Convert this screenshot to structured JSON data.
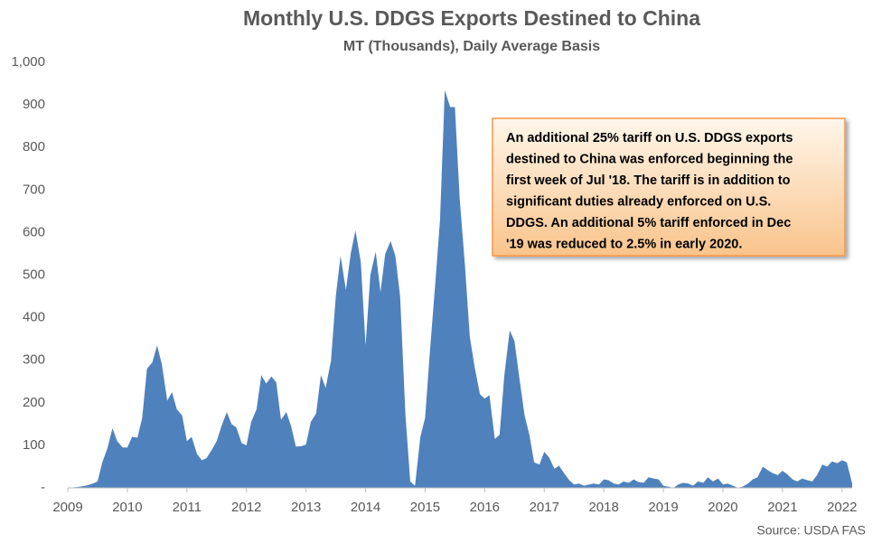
{
  "chart_data": {
    "type": "area",
    "title": "Monthly U.S. DDGS Exports Destined to China",
    "subtitle": "MT (Thousands), Daily Average Basis",
    "source": "Source: USDA FAS",
    "annotation": [
      "An additional 25% tariff on U.S. DDGS exports",
      "destined to China was enforced beginning the",
      "first week of Jul '18. The tariff is in addition to",
      "significant duties already enforced on U.S.",
      "DDGS. An additional 5% tariff enforced in Dec",
      "'19 was reduced to 2.5% in early 2020."
    ],
    "color": "#4f81bd",
    "xlim": [
      2009,
      2022.17
    ],
    "xticks": [
      2009,
      2010,
      2011,
      2012,
      2013,
      2014,
      2015,
      2016,
      2017,
      2018,
      2019,
      2020,
      2021,
      2022
    ],
    "ylim": [
      0,
      1000
    ],
    "yticks": [
      {
        "value": 0,
        "label": "-"
      },
      100,
      200,
      300,
      400,
      500,
      600,
      700,
      800,
      900,
      {
        "value": 1000,
        "label": "1,000"
      }
    ],
    "x": [
      2009.0,
      2009.08,
      2009.17,
      2009.25,
      2009.33,
      2009.42,
      2009.5,
      2009.58,
      2009.67,
      2009.75,
      2009.83,
      2009.92,
      2010.0,
      2010.08,
      2010.17,
      2010.25,
      2010.33,
      2010.42,
      2010.5,
      2010.58,
      2010.67,
      2010.75,
      2010.83,
      2010.92,
      2011.0,
      2011.08,
      2011.17,
      2011.25,
      2011.33,
      2011.42,
      2011.5,
      2011.58,
      2011.67,
      2011.75,
      2011.83,
      2011.92,
      2012.0,
      2012.08,
      2012.17,
      2012.25,
      2012.33,
      2012.42,
      2012.5,
      2012.58,
      2012.67,
      2012.75,
      2012.83,
      2012.92,
      2013.0,
      2013.08,
      2013.17,
      2013.25,
      2013.33,
      2013.42,
      2013.5,
      2013.58,
      2013.67,
      2013.75,
      2013.83,
      2013.92,
      2014.0,
      2014.08,
      2014.17,
      2014.25,
      2014.33,
      2014.42,
      2014.5,
      2014.58,
      2014.67,
      2014.75,
      2014.83,
      2014.92,
      2015.0,
      2015.08,
      2015.17,
      2015.25,
      2015.33,
      2015.42,
      2015.5,
      2015.58,
      2015.67,
      2015.75,
      2015.83,
      2015.92,
      2016.0,
      2016.08,
      2016.17,
      2016.25,
      2016.33,
      2016.42,
      2016.5,
      2016.58,
      2016.67,
      2016.75,
      2016.83,
      2016.92,
      2017.0,
      2017.08,
      2017.17,
      2017.25,
      2017.33,
      2017.42,
      2017.5,
      2017.58,
      2017.67,
      2017.75,
      2017.83,
      2017.92,
      2018.0,
      2018.08,
      2018.17,
      2018.25,
      2018.33,
      2018.42,
      2018.5,
      2018.58,
      2018.67,
      2018.75,
      2018.83,
      2018.92,
      2019.0,
      2019.08,
      2019.17,
      2019.25,
      2019.33,
      2019.42,
      2019.5,
      2019.58,
      2019.67,
      2019.75,
      2019.83,
      2019.92,
      2020.0,
      2020.08,
      2020.17,
      2020.25,
      2020.33,
      2020.42,
      2020.5,
      2020.58,
      2020.67,
      2020.75,
      2020.83,
      2020.92,
      2021.0,
      2021.08,
      2021.17,
      2021.25,
      2021.33,
      2021.42,
      2021.5,
      2021.58,
      2021.67,
      2021.75,
      2021.83,
      2021.92,
      2022.0,
      2022.08,
      2022.17
    ],
    "values": [
      0,
      1,
      2,
      4,
      6,
      10,
      15,
      60,
      95,
      140,
      110,
      95,
      95,
      120,
      118,
      165,
      280,
      295,
      335,
      290,
      205,
      225,
      185,
      170,
      110,
      120,
      80,
      65,
      70,
      90,
      110,
      145,
      178,
      150,
      142,
      105,
      100,
      155,
      185,
      265,
      245,
      262,
      248,
      160,
      178,
      145,
      97,
      98,
      102,
      155,
      175,
      265,
      235,
      300,
      450,
      545,
      465,
      550,
      605,
      530,
      335,
      500,
      555,
      460,
      550,
      580,
      545,
      450,
      170,
      15,
      5,
      120,
      165,
      320,
      480,
      630,
      935,
      895,
      895,
      680,
      520,
      355,
      285,
      220,
      210,
      218,
      115,
      125,
      265,
      370,
      345,
      260,
      170,
      125,
      60,
      55,
      85,
      72,
      45,
      52,
      35,
      18,
      8,
      10,
      5,
      8,
      10,
      8,
      20,
      18,
      10,
      8,
      15,
      12,
      20,
      14,
      12,
      25,
      22,
      20,
      5,
      3,
      0,
      8,
      12,
      10,
      5,
      15,
      12,
      25,
      15,
      22,
      8,
      10,
      5,
      0,
      3,
      10,
      20,
      25,
      50,
      42,
      35,
      30,
      40,
      32,
      20,
      15,
      22,
      18,
      15,
      30,
      55,
      50,
      62,
      58,
      65,
      60,
      10
    ]
  }
}
